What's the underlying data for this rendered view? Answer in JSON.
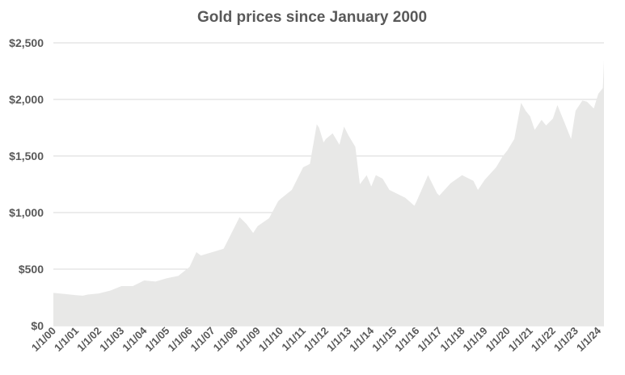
{
  "chart_data": {
    "type": "area",
    "title": "Gold prices since January 2000",
    "xlabel": "",
    "ylabel": "",
    "ylim": [
      0,
      2500
    ],
    "yticks": [
      "$0",
      "$500",
      "$1,000",
      "$1,500",
      "$2,000",
      "$2,500"
    ],
    "ytick_values": [
      0,
      500,
      1000,
      1500,
      2000,
      2500
    ],
    "xticks": [
      "1/1/00",
      "1/1/01",
      "1/1/02",
      "1/1/03",
      "1/1/04",
      "1/1/05",
      "1/1/06",
      "1/1/07",
      "1/1/08",
      "1/1/09",
      "1/1/10",
      "1/1/11",
      "1/1/12",
      "1/1/13",
      "1/1/14",
      "1/1/15",
      "1/1/16",
      "1/1/17",
      "1/1/18",
      "1/1/19",
      "1/1/20",
      "1/1/21",
      "1/1/22",
      "1/1/23",
      "1/1/24"
    ],
    "grid": true,
    "fill_color": "#e8e8e7",
    "series": [
      {
        "x": [
          2000.0,
          2000.5,
          2001.0,
          2001.3,
          2001.5,
          2002.0,
          2002.5,
          2003.0,
          2003.5,
          2004.0,
          2004.5,
          2005.0,
          2005.5,
          2006.0,
          2006.3,
          2006.5,
          2007.0,
          2007.5,
          2008.0,
          2008.2,
          2008.5,
          2008.8,
          2009.0,
          2009.5,
          2009.9,
          2010.0,
          2010.5,
          2011.0,
          2011.3,
          2011.6,
          2011.7,
          2011.9,
          2012.0,
          2012.3,
          2012.6,
          2012.8,
          2013.0,
          2013.3,
          2013.5,
          2013.8,
          2014.0,
          2014.2,
          2014.5,
          2014.8,
          2015.0,
          2015.5,
          2015.9,
          2016.0,
          2016.5,
          2016.9,
          2017.0,
          2017.5,
          2018.0,
          2018.5,
          2018.7,
          2019.0,
          2019.5,
          2019.8,
          2020.0,
          2020.3,
          2020.6,
          2020.8,
          2021.0,
          2021.2,
          2021.5,
          2021.7,
          2022.0,
          2022.2,
          2022.5,
          2022.8,
          2023.0,
          2023.3,
          2023.5,
          2023.8,
          2024.0,
          2024.2,
          2024.25
        ],
        "y": [
          290,
          280,
          270,
          265,
          275,
          285,
          310,
          350,
          350,
          400,
          390,
          420,
          440,
          520,
          650,
          620,
          650,
          680,
          880,
          960,
          900,
          820,
          880,
          950,
          1100,
          1120,
          1200,
          1400,
          1430,
          1780,
          1750,
          1620,
          1650,
          1700,
          1600,
          1760,
          1680,
          1580,
          1250,
          1330,
          1230,
          1330,
          1300,
          1200,
          1180,
          1130,
          1060,
          1100,
          1330,
          1170,
          1150,
          1260,
          1330,
          1280,
          1200,
          1290,
          1400,
          1500,
          1550,
          1650,
          1970,
          1900,
          1850,
          1730,
          1820,
          1770,
          1830,
          1950,
          1800,
          1650,
          1900,
          1990,
          1980,
          1920,
          2050,
          2100,
          2350
        ]
      }
    ]
  }
}
